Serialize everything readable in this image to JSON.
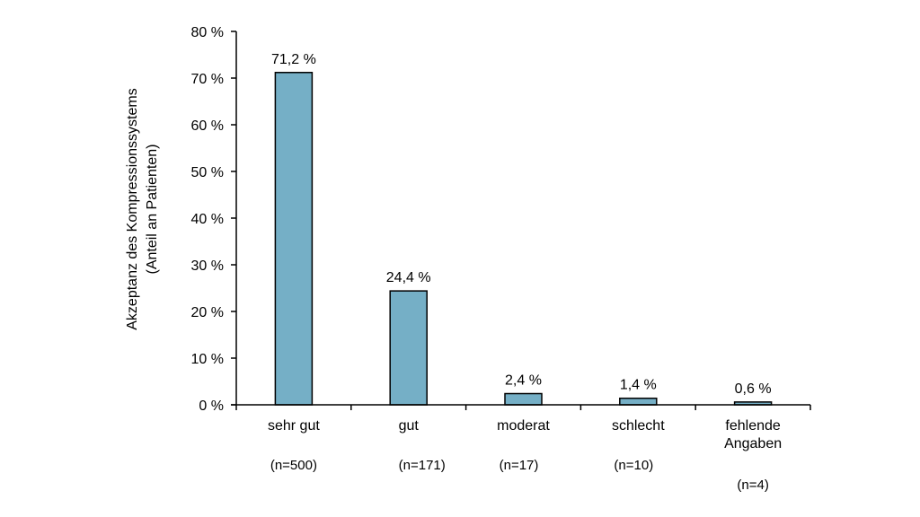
{
  "chart_data": {
    "type": "bar",
    "title": "",
    "ylabel_lines": [
      "Akzeptanz des Kompressionssystems",
      "(Anteil an Patienten)"
    ],
    "xlabel": "",
    "ylim": [
      0,
      80
    ],
    "ytick_step": 10,
    "ytick_labels": [
      "0 %",
      "10 %",
      "20 %",
      "30 %",
      "40 %",
      "50 %",
      "60 %",
      "70 %",
      "80 %"
    ],
    "categories": [
      [
        "sehr gut"
      ],
      [
        "gut"
      ],
      [
        "moderat"
      ],
      [
        "schlecht"
      ],
      [
        "fehlende",
        "Angaben"
      ]
    ],
    "counts": [
      "(n=500)",
      "(n=171)",
      "(n=17)",
      "(n=10)",
      "(n=4)"
    ],
    "values": [
      71.2,
      24.4,
      2.4,
      1.4,
      0.6
    ],
    "value_labels": [
      "71,2 %",
      "24,4 %",
      "2,4 %",
      "1,4 %",
      "0,6 %"
    ],
    "bar_color": "#75AFC6",
    "bar_edge_color": "#000000",
    "grid": false,
    "legend": "none"
  }
}
